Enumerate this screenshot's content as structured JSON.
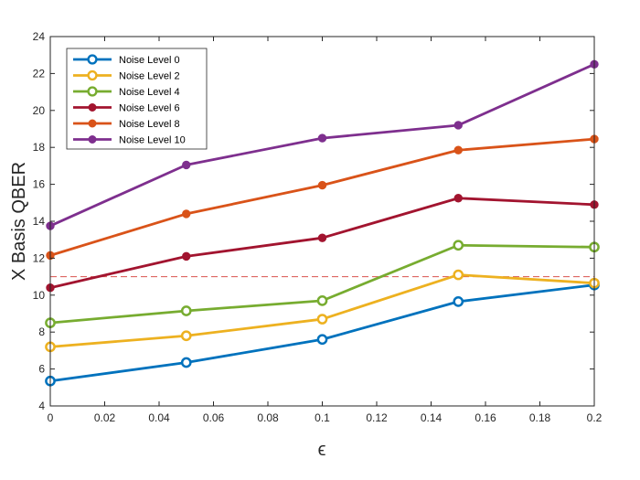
{
  "chart_data": {
    "type": "line",
    "title": "",
    "xlabel": "ϵ",
    "ylabel": "X Basis QBER",
    "x": [
      0,
      0.05,
      0.1,
      0.15,
      0.2
    ],
    "xlim": [
      0,
      0.2
    ],
    "ylim": [
      4,
      24
    ],
    "xticks": [
      "0",
      "0.02",
      "0.04",
      "0.06",
      "0.08",
      "0.1",
      "0.12",
      "0.14",
      "0.16",
      "0.18",
      "0.2"
    ],
    "yticks": [
      "4",
      "6",
      "8",
      "10",
      "12",
      "14",
      "16",
      "18",
      "20",
      "22",
      "24"
    ],
    "grid": false,
    "legend_position": "top-left",
    "threshold": {
      "value": 11.0,
      "color": "#d9534f",
      "style": "dashed"
    },
    "series": [
      {
        "name": "Noise Level 0",
        "color": "#0072BD",
        "marker": "open-circle",
        "values": [
          5.35,
          6.35,
          7.6,
          9.65,
          10.55
        ]
      },
      {
        "name": "Noise Level 2",
        "color": "#EDB120",
        "marker": "open-circle",
        "values": [
          7.2,
          7.8,
          8.7,
          11.1,
          10.65
        ]
      },
      {
        "name": "Noise Level 4",
        "color": "#77AC30",
        "marker": "open-circle",
        "values": [
          8.5,
          9.15,
          9.7,
          12.7,
          12.6
        ]
      },
      {
        "name": "Noise Level 6",
        "color": "#A2142F",
        "marker": "filled-circle",
        "values": [
          10.4,
          12.1,
          13.1,
          15.25,
          14.9
        ]
      },
      {
        "name": "Noise Level 8",
        "color": "#D95319",
        "marker": "filled-circle",
        "values": [
          12.15,
          14.4,
          15.95,
          17.85,
          18.45
        ]
      },
      {
        "name": "Noise Level 10",
        "color": "#7E2F8E",
        "marker": "filled-circle",
        "values": [
          13.75,
          17.05,
          18.5,
          19.2,
          22.5
        ]
      }
    ]
  }
}
